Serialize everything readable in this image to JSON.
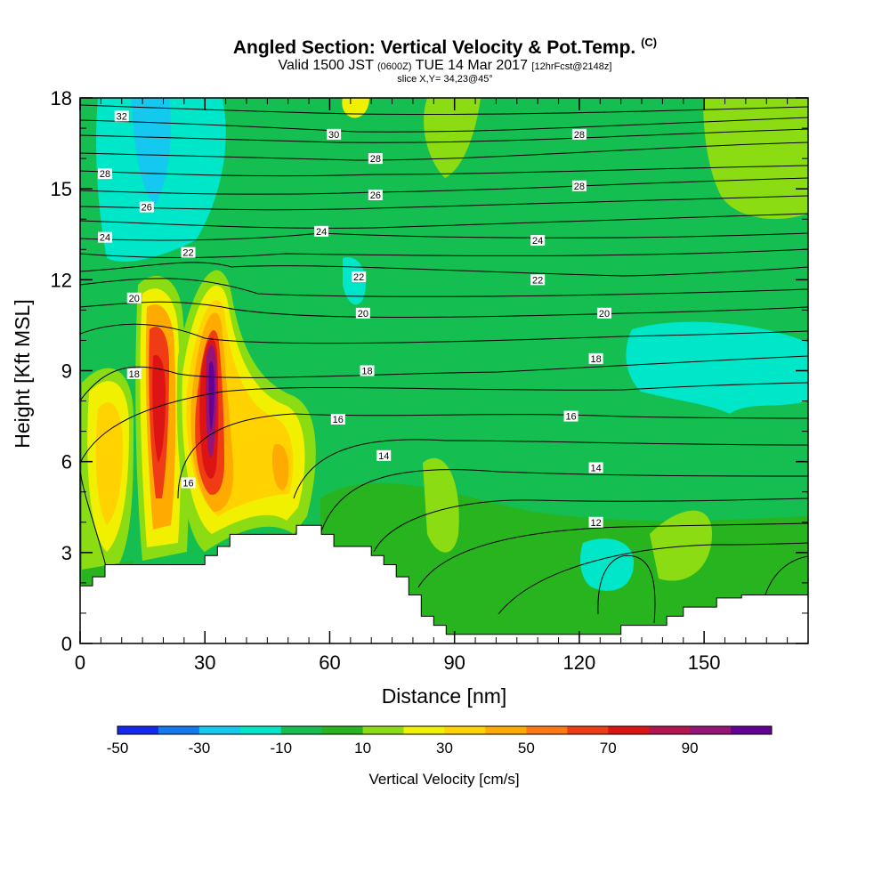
{
  "header": {
    "title": "Angled Section: Vertical Velocity & Pot.Temp.",
    "title_unit": "(C)",
    "valid_prefix": "Valid 1500 JST",
    "valid_utc": "(0600Z)",
    "valid_date": "TUE 14 Mar 2017",
    "forecast": "[12hrFcst@2148z]",
    "slice": "slice X,Y= 34,23@45°"
  },
  "chart_data": {
    "type": "heatmap",
    "xlabel": "Distance [nm]",
    "ylabel": "Height [Kft MSL]",
    "xlim": [
      0,
      175
    ],
    "ylim": [
      0,
      18
    ],
    "x_ticks": [
      0,
      30,
      60,
      90,
      120,
      150
    ],
    "y_ticks": [
      0,
      3,
      6,
      9,
      12,
      15,
      18
    ],
    "colorbar": {
      "label": "Vertical Velocity [cm/s]",
      "tick_labels": [
        "-50",
        "-30",
        "-10",
        "10",
        "30",
        "50",
        "70",
        "90"
      ],
      "colors": [
        "#1428f0",
        "#1478f0",
        "#14c8f0",
        "#00e6c8",
        "#14be50",
        "#28b41e",
        "#8cdc14",
        "#f0f000",
        "#ffd200",
        "#ffaa00",
        "#ff7814",
        "#f03c14",
        "#dc1414",
        "#b41450",
        "#961478",
        "#640096"
      ]
    },
    "contour_variable": "Potential Temperature (C)",
    "contour_labels": [
      {
        "text": "32",
        "x": 10,
        "y": 17.4
      },
      {
        "text": "30",
        "x": 61,
        "y": 16.8
      },
      {
        "text": "28",
        "x": 6,
        "y": 15.5
      },
      {
        "text": "28",
        "x": 71,
        "y": 16.0
      },
      {
        "text": "28",
        "x": 120,
        "y": 15.1
      },
      {
        "text": "28",
        "x": 120,
        "y": 16.8
      },
      {
        "text": "26",
        "x": 16,
        "y": 14.4
      },
      {
        "text": "26",
        "x": 71,
        "y": 14.8
      },
      {
        "text": "24",
        "x": 6,
        "y": 13.4
      },
      {
        "text": "24",
        "x": 58,
        "y": 13.6
      },
      {
        "text": "24",
        "x": 110,
        "y": 13.3
      },
      {
        "text": "22",
        "x": 26,
        "y": 12.9
      },
      {
        "text": "22",
        "x": 67,
        "y": 12.1
      },
      {
        "text": "22",
        "x": 110,
        "y": 12.0
      },
      {
        "text": "20",
        "x": 13,
        "y": 11.4
      },
      {
        "text": "20",
        "x": 68,
        "y": 10.9
      },
      {
        "text": "20",
        "x": 126,
        "y": 10.9
      },
      {
        "text": "18",
        "x": 13,
        "y": 8.9
      },
      {
        "text": "18",
        "x": 69,
        "y": 9.0
      },
      {
        "text": "18",
        "x": 124,
        "y": 9.4
      },
      {
        "text": "16",
        "x": 62,
        "y": 7.4
      },
      {
        "text": "16",
        "x": 118,
        "y": 7.5
      },
      {
        "text": "16",
        "x": 26,
        "y": 5.3
      },
      {
        "text": "14",
        "x": 73,
        "y": 6.2
      },
      {
        "text": "14",
        "x": 124,
        "y": 5.8
      },
      {
        "text": "12",
        "x": 124,
        "y": 4.0
      }
    ],
    "terrain": [
      [
        0,
        1.9
      ],
      [
        3,
        1.9
      ],
      [
        3,
        2.2
      ],
      [
        6,
        2.2
      ],
      [
        6,
        2.6
      ],
      [
        30,
        2.6
      ],
      [
        30,
        2.9
      ],
      [
        33,
        2.9
      ],
      [
        33,
        3.2
      ],
      [
        36,
        3.2
      ],
      [
        36,
        3.6
      ],
      [
        52,
        3.6
      ],
      [
        52,
        3.9
      ],
      [
        58,
        3.9
      ],
      [
        58,
        3.6
      ],
      [
        61,
        3.6
      ],
      [
        61,
        3.2
      ],
      [
        70,
        3.2
      ],
      [
        70,
        2.9
      ],
      [
        73,
        2.9
      ],
      [
        73,
        2.6
      ],
      [
        76,
        2.6
      ],
      [
        76,
        2.2
      ],
      [
        79,
        2.2
      ],
      [
        79,
        1.6
      ],
      [
        82,
        1.6
      ],
      [
        82,
        0.9
      ],
      [
        85,
        0.9
      ],
      [
        85,
        0.6
      ],
      [
        88,
        0.6
      ],
      [
        88,
        0.3
      ],
      [
        130,
        0.3
      ],
      [
        130,
        0.6
      ],
      [
        141,
        0.6
      ],
      [
        141,
        0.9
      ],
      [
        145,
        0.9
      ],
      [
        145,
        1.2
      ],
      [
        153,
        1.2
      ],
      [
        153,
        1.5
      ],
      [
        159,
        1.5
      ],
      [
        159,
        1.6
      ],
      [
        175,
        1.6
      ]
    ]
  }
}
